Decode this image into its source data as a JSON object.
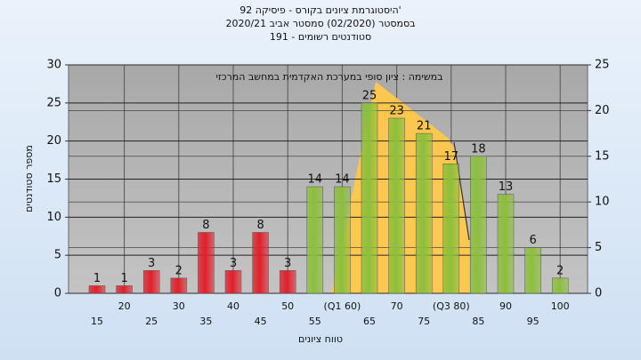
{
  "chart_data": {
    "type": "bar",
    "title": "היסטוגרמת ציונים בקורס - פיסיקה 92'",
    "subtitle": "בסמסטר (02/2020) סמסטר אביב 2020/21",
    "subtitle2": "סטודנטים רשומים - 191",
    "annotation": "במשימה : ציון סופי במערכת האקדמית במחשב המרכזי",
    "y_label": "מספר סטודנטים",
    "x_label": "טווח ציונים",
    "categories": [
      "15",
      "20",
      "25",
      "30",
      "35",
      "40",
      "45",
      "50",
      "55",
      "(Q1 60)",
      "65",
      "70",
      "75",
      "(Q3 80)",
      "85",
      "90",
      "95",
      "100"
    ],
    "values": [
      1,
      1,
      3,
      2,
      8,
      3,
      8,
      3,
      14,
      14,
      25,
      23,
      21,
      17,
      18,
      13,
      6,
      2
    ],
    "colors": [
      "#e0202a",
      "#e0202a",
      "#e0202a",
      "#e0202a",
      "#e0202a",
      "#e0202a",
      "#e0202a",
      "#e0202a",
      "#8cbf3c",
      "#8cbf3c",
      "#8cbf3c",
      "#8cbf3c",
      "#8cbf3c",
      "#8cbf3c",
      "#8cbf3c",
      "#8cbf3c",
      "#8cbf3c",
      "#8cbf3c"
    ],
    "ylim": [
      0,
      30
    ],
    "yticks": [
      0,
      5,
      10,
      15,
      20,
      25,
      30
    ],
    "y2lim": [
      0,
      25
    ],
    "y2ticks": [
      0,
      5,
      10,
      15,
      20,
      25
    ],
    "grid": true
  }
}
